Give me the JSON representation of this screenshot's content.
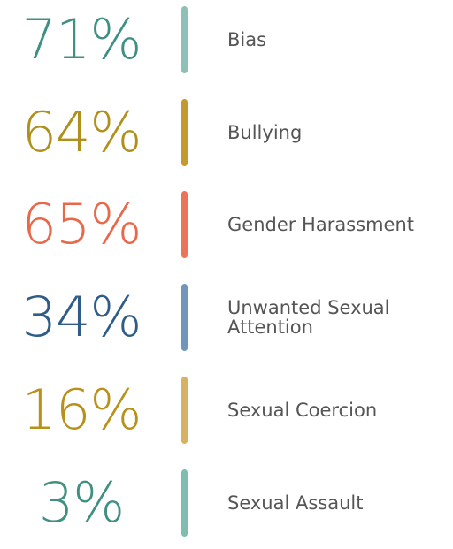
{
  "items": [
    {
      "value": "71%",
      "label": "Bias",
      "color": "#3f8f85",
      "bar_color": "#8fc0b8"
    },
    {
      "value": "64%",
      "label": "Bullying",
      "color": "#b0901c",
      "bar_color": "#c49a30"
    },
    {
      "value": "65%",
      "label": "Gender Harassment",
      "color": "#e8684a",
      "bar_color": "#ec7458"
    },
    {
      "value": "34%",
      "label": "Unwanted Sexual Attention",
      "color": "#2f5d88",
      "bar_color": "#7097bb"
    },
    {
      "value": "16%",
      "label": "Sexual Coercion",
      "color": "#b8901a",
      "bar_color": "#d8b264"
    },
    {
      "value": "3%",
      "label": "Sexual Assault",
      "color": "#3f9080",
      "bar_color": "#80bdb1"
    }
  ]
}
